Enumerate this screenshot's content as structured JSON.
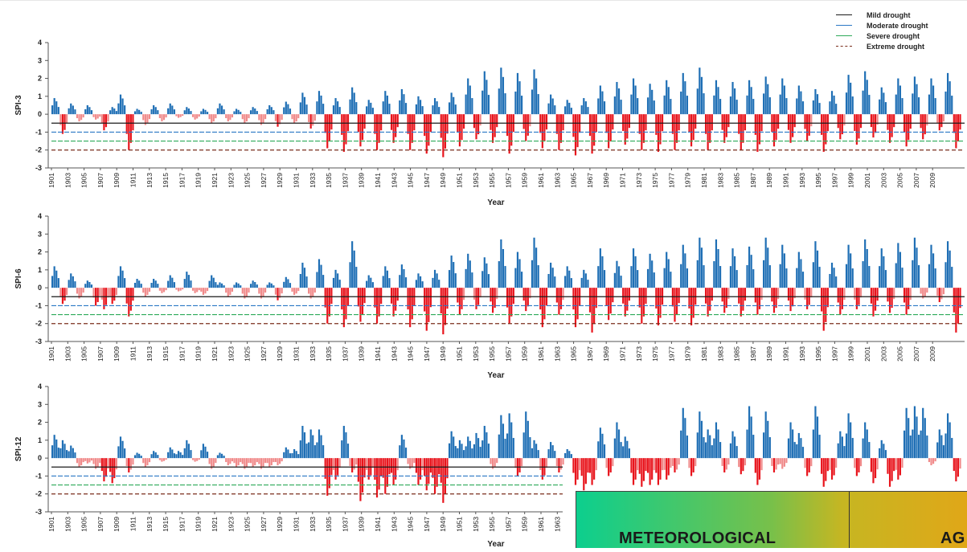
{
  "legend": [
    {
      "label": "Mild drought",
      "color": "#1a1a1a",
      "dash": "solid"
    },
    {
      "label": "Moderate drought",
      "color": "#2b78c5",
      "dash": "solid"
    },
    {
      "label": "Severe drought",
      "color": "#2eaa5a",
      "dash": "solid"
    },
    {
      "label": "Extreme drought",
      "color": "#7b2e1c",
      "dash": "dashed"
    }
  ],
  "colors": {
    "positive": "#1f6fb5",
    "negative": "#e8141c",
    "negative_light": "#f08a8a"
  },
  "banner": {
    "label_meteorological": "METEOROLOGICAL",
    "label_next": "AG"
  },
  "chart_data": [
    {
      "type": "bar",
      "ylabel": "SPI-3",
      "xlabel": "Year",
      "ylim": [
        -3,
        4
      ],
      "yticks": [
        -3,
        -2,
        -1,
        0,
        1,
        2,
        3,
        4
      ],
      "xrange": [
        1901,
        2010
      ],
      "x_tick_labels": [
        "1901",
        "1903",
        "1905",
        "1907",
        "1909",
        "1911",
        "1913",
        "1915",
        "1917",
        "1919",
        "1921",
        "1923",
        "1925",
        "1927",
        "1929",
        "1931",
        "1933",
        "1935",
        "1937",
        "1939",
        "1941",
        "1943",
        "1945",
        "1947",
        "1949",
        "1951",
        "1953",
        "1955",
        "1957",
        "1959",
        "1961",
        "1963",
        "1965",
        "1967",
        "1969",
        "1971",
        "1973",
        "1975",
        "1977",
        "1979",
        "1981",
        "1983",
        "1985",
        "1987",
        "1989",
        "1991",
        "1993",
        "1995",
        "1997",
        "1999",
        "2001",
        "2003",
        "2005",
        "2007",
        "2009"
      ],
      "thresholds": {
        "mild": -0.5,
        "moderate": -1.0,
        "severe": -1.5,
        "extreme": -2.0
      },
      "grid": false,
      "series": [
        {
          "values": [
            0.9,
            -1.1,
            0.6,
            -0.4,
            0.5,
            -0.3,
            -0.9,
            0.4,
            1.1,
            -2.0,
            0.3,
            -0.6,
            0.5,
            -0.4,
            0.6,
            -0.2,
            0.4,
            -0.3,
            0.3,
            -0.5,
            0.6,
            -0.4,
            0.3,
            -0.5,
            0.4,
            -0.6,
            0.5,
            -0.7,
            0.7,
            -0.5,
            1.2,
            -0.8,
            1.3,
            -1.9,
            0.9,
            -2.1,
            1.5,
            -1.8,
            0.8,
            -2.0,
            1.3,
            -1.6,
            1.4,
            -2.0,
            1.0,
            -2.2,
            0.9,
            -2.4,
            1.2,
            -1.8,
            2.0,
            -1.4,
            2.4,
            -1.6,
            2.6,
            -2.2,
            2.3,
            -1.5,
            2.5,
            -1.9,
            1.1,
            -2.0,
            0.8,
            -2.3,
            0.9,
            -2.2,
            1.6,
            -1.9,
            1.8,
            -1.7,
            2.0,
            -2.0,
            1.7,
            -2.1,
            1.9,
            -2.0,
            2.3,
            -1.8,
            2.6,
            -2.0,
            1.9,
            -1.6,
            1.8,
            -2.0,
            1.9,
            -2.1,
            2.1,
            -1.8,
            2.0,
            -1.6,
            1.6,
            -1.5,
            1.4,
            -2.1,
            1.3,
            -1.4,
            2.2,
            -1.7,
            2.4,
            -1.3,
            1.5,
            -1.6,
            2.0,
            -1.8,
            2.1,
            -1.4,
            2.0,
            -0.9,
            2.3,
            -1.9
          ]
        }
      ]
    },
    {
      "type": "bar",
      "ylabel": "SPI-6",
      "xlabel": "Year",
      "ylim": [
        -3,
        4
      ],
      "yticks": [
        -3,
        -2,
        -1,
        0,
        1,
        2,
        3,
        4
      ],
      "xrange": [
        1901,
        2010
      ],
      "x_tick_labels": [
        "1901",
        "1903",
        "1905",
        "1907",
        "1909",
        "1911",
        "1913",
        "1915",
        "1917",
        "1919",
        "1921",
        "1923",
        "1925",
        "1927",
        "1929",
        "1931",
        "1933",
        "1935",
        "1937",
        "1939",
        "1941",
        "1943",
        "1945",
        "1947",
        "1949",
        "1951",
        "1953",
        "1955",
        "1957",
        "1959",
        "1961",
        "1963",
        "1965",
        "1967",
        "1969",
        "1971",
        "1973",
        "1975",
        "1977",
        "1979",
        "1981",
        "1983",
        "1985",
        "1987",
        "1989",
        "1991",
        "1993",
        "1995",
        "1997",
        "1999",
        "2001",
        "2003",
        "2005",
        "2007",
        "2009"
      ],
      "thresholds": {
        "mild": -0.5,
        "moderate": -1.0,
        "severe": -1.5,
        "extreme": -2.0
      },
      "grid": false,
      "series": [
        {
          "values": [
            1.2,
            -0.9,
            0.8,
            -0.6,
            0.4,
            -1.0,
            -1.2,
            -0.9,
            1.2,
            -1.6,
            0.5,
            -0.5,
            0.5,
            -0.3,
            0.7,
            -0.2,
            0.9,
            -0.3,
            -0.4,
            0.7,
            0.3,
            -0.5,
            0.3,
            -0.6,
            0.4,
            -0.6,
            0.3,
            -0.7,
            0.6,
            -0.4,
            1.4,
            -0.6,
            1.6,
            -2.0,
            1.0,
            -2.2,
            2.6,
            -1.9,
            0.7,
            -2.0,
            1.2,
            -1.6,
            1.3,
            -2.2,
            0.8,
            -2.4,
            1.0,
            -2.6,
            1.8,
            -1.5,
            1.9,
            -1.2,
            1.7,
            -1.4,
            2.7,
            -2.0,
            2.0,
            -1.3,
            2.8,
            -2.2,
            1.4,
            -1.5,
            1.2,
            -2.2,
            1.0,
            -2.5,
            2.2,
            -1.8,
            1.5,
            -1.6,
            2.2,
            -2.0,
            1.9,
            -2.1,
            2.0,
            -1.9,
            2.4,
            -2.1,
            2.8,
            -1.6,
            2.7,
            -1.4,
            2.2,
            -1.6,
            2.3,
            -1.5,
            2.8,
            -1.4,
            2.4,
            -1.3,
            2.0,
            -1.2,
            2.6,
            -2.4,
            1.4,
            -1.5,
            2.4,
            -1.2,
            2.7,
            -1.6,
            2.2,
            -1.4,
            2.5,
            -1.5,
            2.8,
            -0.6,
            2.4,
            -0.8,
            2.6,
            -2.5
          ]
        }
      ]
    },
    {
      "type": "bar",
      "ylabel": "SPI-12",
      "xlabel": "Year",
      "ylim": [
        -3,
        4
      ],
      "yticks": [
        -3,
        -2,
        -1,
        0,
        1,
        2,
        3,
        4
      ],
      "xrange": [
        1901,
        2010
      ],
      "x_tick_labels": [
        "1901",
        "1903",
        "1905",
        "1907",
        "1909",
        "1911",
        "1913",
        "1915",
        "1917",
        "1919",
        "1921",
        "1923",
        "1925",
        "1927",
        "1929",
        "1931",
        "1933",
        "1935",
        "1937",
        "1939",
        "1941",
        "1943",
        "1945",
        "1947",
        "1949",
        "1951",
        "1953",
        "1955",
        "1957",
        "1959",
        "1961",
        "1963"
      ],
      "thresholds": {
        "mild": -0.5,
        "moderate": -1.0,
        "severe": -1.5,
        "extreme": -2.0
      },
      "grid": false,
      "series": [
        {
          "values": [
            1.3,
            1.0,
            0.7,
            -0.5,
            -0.3,
            -0.6,
            -1.3,
            -1.4,
            1.2,
            -0.8,
            0.3,
            -0.5,
            0.4,
            -0.2,
            0.6,
            0.4,
            1.0,
            -0.2,
            0.8,
            -0.6,
            0.3,
            -0.4,
            -0.5,
            -0.6,
            -0.5,
            -0.6,
            -0.5,
            -0.4,
            0.6,
            0.5,
            1.8,
            1.6,
            1.6,
            -2.1,
            -1.2,
            1.8,
            -0.8,
            -2.4,
            -1.2,
            -2.2,
            -2.0,
            -1.5,
            1.3,
            -0.6,
            -1.5,
            -1.8,
            -2.0,
            -2.5,
            1.5,
            1.0,
            1.2,
            1.4,
            1.8,
            -0.6,
            2.4,
            2.5,
            -1.0,
            2.6,
            1.0,
            -1.2,
            0.9,
            -0.8,
            0.5,
            -1.5,
            -1.8,
            -1.5,
            1.7,
            -1.0,
            2.0,
            1.2,
            -1.5,
            -1.6,
            -1.5,
            -1.5,
            -1.2,
            -0.8,
            2.8,
            -1.0,
            2.6,
            1.6,
            2.0,
            -0.8,
            1.5,
            -0.9,
            2.9,
            -1.5,
            2.6,
            -0.8,
            -0.6,
            2.0,
            1.4,
            -1.0,
            2.9,
            -1.6,
            -1.2,
            1.5,
            2.5,
            -1.0,
            2.0,
            -1.4,
            1.0,
            -1.6,
            -1.2,
            2.8,
            2.9,
            2.8,
            -0.4,
            1.6,
            2.5,
            -1.3
          ]
        }
      ]
    }
  ]
}
